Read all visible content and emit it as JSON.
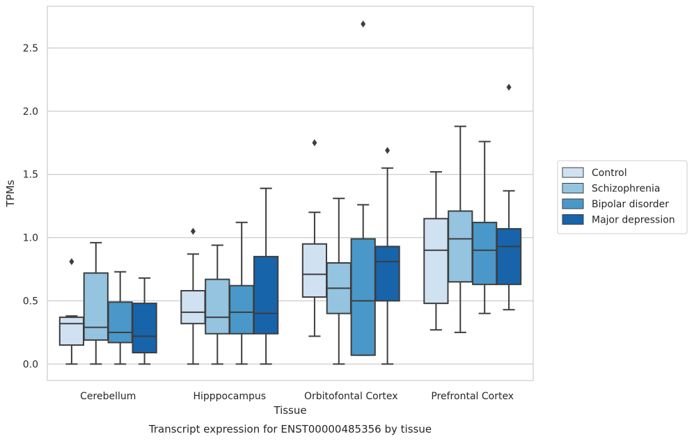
{
  "chart_data": {
    "type": "boxplot",
    "xlabel": "Tissue",
    "ylabel": "TPMs",
    "caption": "Transcript expression for ENST00000485356 by tissue",
    "ylim": [
      -0.13,
      2.83
    ],
    "yticks": [
      0.0,
      0.5,
      1.0,
      1.5,
      2.0,
      2.5
    ],
    "ytick_labels": [
      "0.0",
      "0.5",
      "1.0",
      "1.5",
      "2.0",
      "2.5"
    ],
    "grid": "horizontal",
    "legend_position": "right",
    "categories": [
      "Cerebellum",
      "Hipppocampus",
      "Orbitofontal Cortex",
      "Prefrontal Cortex"
    ],
    "series": [
      {
        "name": "Control",
        "color": "#d0e1f2",
        "boxes": [
          {
            "whislo": 0.0,
            "q1": 0.15,
            "med": 0.32,
            "q3": 0.37,
            "whishi": 0.38,
            "fliers": [
              0.81
            ]
          },
          {
            "whislo": 0.0,
            "q1": 0.32,
            "med": 0.41,
            "q3": 0.58,
            "whishi": 0.87,
            "fliers": [
              1.05
            ]
          },
          {
            "whislo": 0.22,
            "q1": 0.53,
            "med": 0.71,
            "q3": 0.95,
            "whishi": 1.2,
            "fliers": [
              1.75
            ]
          },
          {
            "whislo": 0.27,
            "q1": 0.48,
            "med": 0.9,
            "q3": 1.15,
            "whishi": 1.52,
            "fliers": []
          }
        ]
      },
      {
        "name": "Schizophrenia",
        "color": "#94c4df",
        "boxes": [
          {
            "whislo": 0.0,
            "q1": 0.19,
            "med": 0.29,
            "q3": 0.72,
            "whishi": 0.96,
            "fliers": []
          },
          {
            "whislo": 0.0,
            "q1": 0.24,
            "med": 0.37,
            "q3": 0.67,
            "whishi": 0.94,
            "fliers": []
          },
          {
            "whislo": 0.0,
            "q1": 0.4,
            "med": 0.6,
            "q3": 0.8,
            "whishi": 1.31,
            "fliers": []
          },
          {
            "whislo": 0.25,
            "q1": 0.65,
            "med": 0.99,
            "q3": 1.21,
            "whishi": 1.88,
            "fliers": []
          }
        ]
      },
      {
        "name": "Bipolar disorder",
        "color": "#4a98c9",
        "boxes": [
          {
            "whislo": 0.0,
            "q1": 0.17,
            "med": 0.25,
            "q3": 0.49,
            "whishi": 0.73,
            "fliers": []
          },
          {
            "whislo": 0.0,
            "q1": 0.24,
            "med": 0.41,
            "q3": 0.62,
            "whishi": 1.12,
            "fliers": []
          },
          {
            "whislo": 0.07,
            "q1": 0.07,
            "med": 0.5,
            "q3": 0.99,
            "whishi": 1.26,
            "fliers": [
              2.69
            ]
          },
          {
            "whislo": 0.4,
            "q1": 0.63,
            "med": 0.9,
            "q3": 1.12,
            "whishi": 1.76,
            "fliers": []
          }
        ]
      },
      {
        "name": "Major depression",
        "color": "#1764ab",
        "boxes": [
          {
            "whislo": 0.0,
            "q1": 0.09,
            "med": 0.22,
            "q3": 0.48,
            "whishi": 0.68,
            "fliers": []
          },
          {
            "whislo": 0.0,
            "q1": 0.24,
            "med": 0.4,
            "q3": 0.85,
            "whishi": 1.39,
            "fliers": []
          },
          {
            "whislo": 0.0,
            "q1": 0.5,
            "med": 0.81,
            "q3": 0.93,
            "whishi": 1.55,
            "fliers": [
              1.69
            ]
          },
          {
            "whislo": 0.43,
            "q1": 0.63,
            "med": 0.93,
            "q3": 1.07,
            "whishi": 1.37,
            "fliers": [
              2.19
            ]
          }
        ]
      }
    ]
  }
}
